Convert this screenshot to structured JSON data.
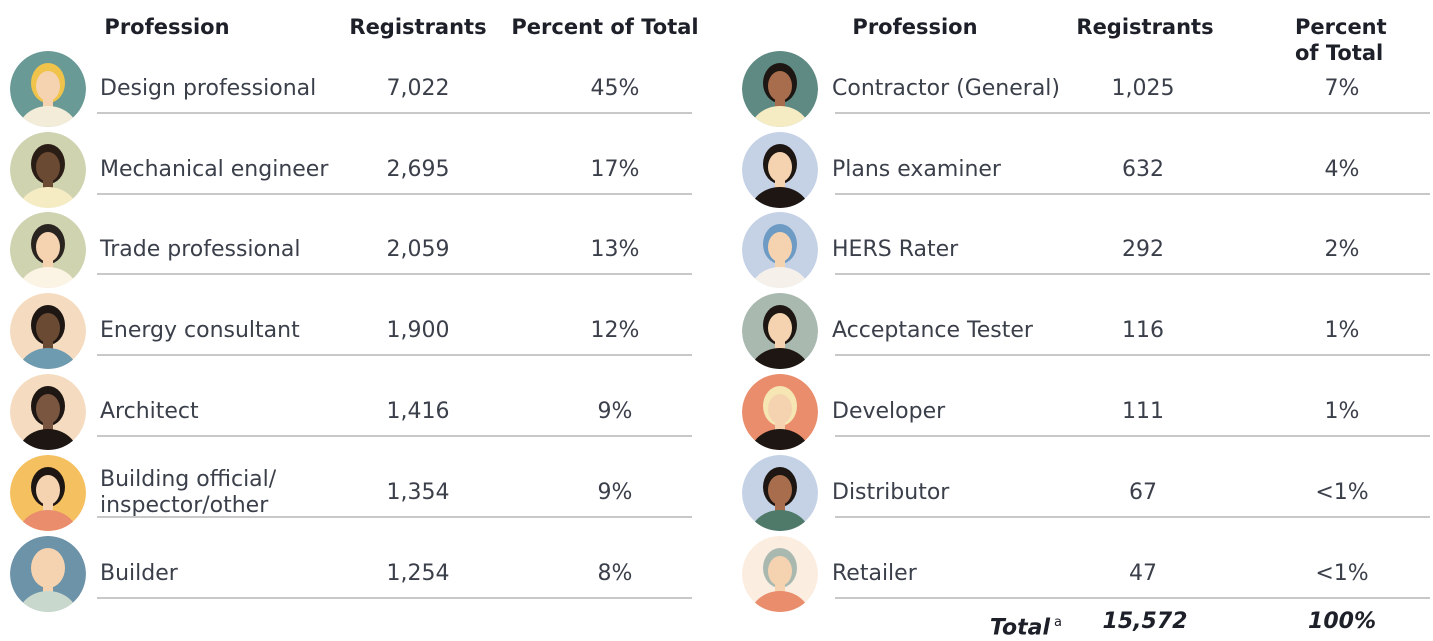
{
  "left": {
    "header": [
      "Profession",
      "Registrants",
      "Percent of Total"
    ],
    "rows": [
      [
        "Design professional",
        "7,022",
        "45%"
      ],
      [
        "Mechanical engineer",
        "2,695",
        "17%"
      ],
      [
        "Trade professional",
        "2,059",
        "13%"
      ],
      [
        "Energy consultant",
        "1,900",
        "12%"
      ],
      [
        "Architect",
        "1,416",
        "9%"
      ],
      [
        "Building official/\ninspector/other",
        "1,354",
        "9%"
      ],
      [
        "Builder",
        "1,254",
        "8%"
      ]
    ]
  },
  "right": {
    "header": [
      "Profession",
      "Registrants",
      "Percent of Total"
    ],
    "rows": [
      [
        "Contractor (General)",
        "1,025",
        "7%"
      ],
      [
        "Plans examiner",
        "632",
        "4%"
      ],
      [
        "HERS Rater",
        "292",
        "2%"
      ],
      [
        "Acceptance Tester",
        "116",
        "1%"
      ],
      [
        "Developer",
        "111",
        "1%"
      ],
      [
        "Distributor",
        "67",
        "<1%"
      ],
      [
        "Retailer",
        "47",
        "<1%"
      ]
    ]
  },
  "total": {
    "label": "Total",
    "note": "a",
    "registrants": "15,572",
    "percent": "100%"
  }
}
